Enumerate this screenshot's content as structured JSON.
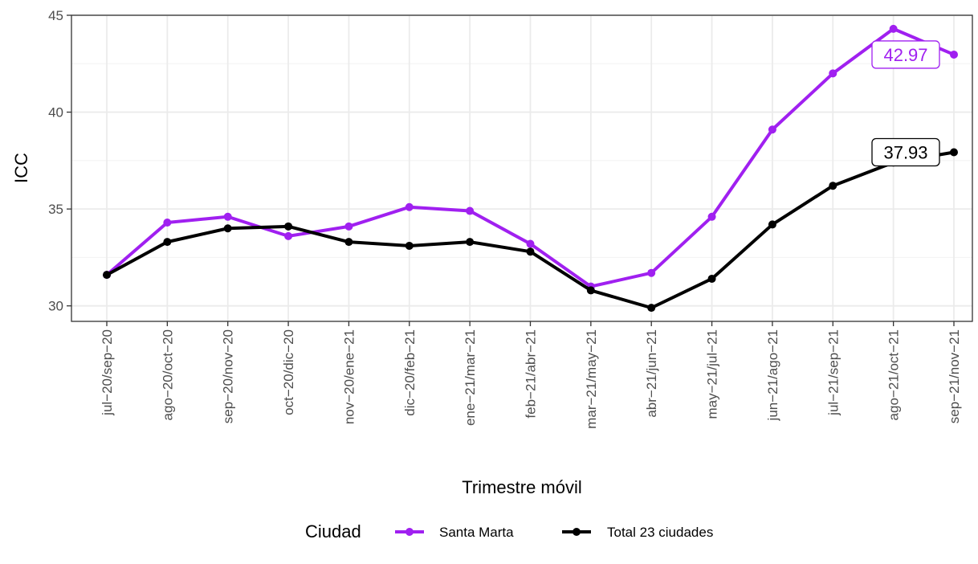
{
  "chart_data": {
    "type": "line",
    "title": "",
    "xlabel": "Trimestre móvil",
    "ylabel": "ICC",
    "ylim": [
      29.2,
      45.0
    ],
    "yticks": [
      30,
      35,
      40,
      45
    ],
    "grid": true,
    "categories": [
      "jul−20/sep−20",
      "ago−20/oct−20",
      "sep−20/nov−20",
      "oct−20/dic−20",
      "nov−20/ene−21",
      "dic−20/feb−21",
      "ene−21/mar−21",
      "feb−21/abr−21",
      "mar−21/may−21",
      "abr−21/jun−21",
      "may−21/jul−21",
      "jun−21/ago−21",
      "jul−21/sep−21",
      "ago−21/oct−21",
      "sep−21/nov−21"
    ],
    "series": [
      {
        "name": "Santa Marta",
        "color": "#a020f0",
        "values": [
          31.6,
          34.3,
          34.6,
          33.6,
          34.1,
          35.1,
          34.9,
          33.2,
          31.0,
          31.7,
          34.6,
          39.1,
          42.0,
          44.3,
          42.97
        ],
        "end_label": "42.97"
      },
      {
        "name": "Total 23 ciudades",
        "color": "#000000",
        "values": [
          31.6,
          33.3,
          34.0,
          34.1,
          33.3,
          33.1,
          33.3,
          32.8,
          30.8,
          29.9,
          31.4,
          34.2,
          36.2,
          37.4,
          37.93
        ],
        "end_label": "37.93"
      }
    ],
    "legend": {
      "title": "Ciudad",
      "position": "bottom"
    }
  }
}
